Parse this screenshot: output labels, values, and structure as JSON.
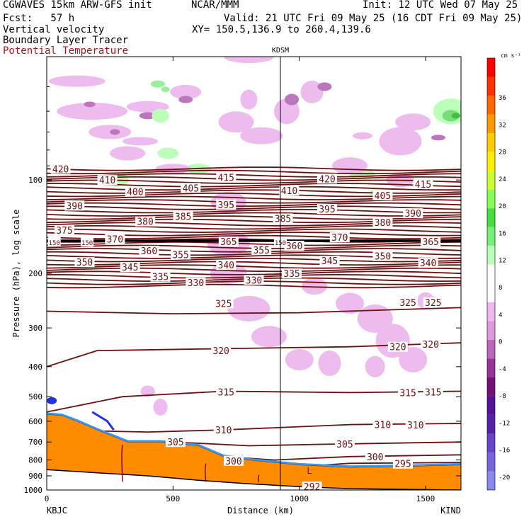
{
  "header": {
    "model": "CGWAVES 15km ARW-GFS init",
    "fcst": "Fcst:   57 h",
    "field1": "Vertical velocity",
    "field2": "Boundary Layer Tracer",
    "field3": "Potential Temperature",
    "org": "NCAR/MMM",
    "init": "Init: 12 UTC Wed 07 May 25",
    "valid": "Valid: 21 UTC Fri 09 May 25 (16 CDT Fri 09 May 25)",
    "xy": "XY= 150.5,136.9 to 260.4,139.6"
  },
  "colorbar": {
    "unit": "cm s⁻¹",
    "labels": [
      "36",
      "32",
      "28",
      "24",
      "20",
      "16",
      "12",
      "8",
      "4",
      "0",
      "-4",
      "-8",
      "-12",
      "-16",
      "-20"
    ],
    "colors": [
      "#ff0000",
      "#ff3300",
      "#ff6600",
      "#ff9900",
      "#ffcc00",
      "#ffee00",
      "#ccff33",
      "#88ff55",
      "#44dd44",
      "#77ee77",
      "#bbffbb",
      "#ffffff",
      "#ffffff",
      "#eeb8ee",
      "#dd99dd",
      "#bb66bb",
      "#993399",
      "#771177",
      "#551199",
      "#5522aa",
      "#6644cc",
      "#7766dd",
      "#8888ee"
    ]
  },
  "chart_data": {
    "type": "cross-section",
    "title": "KDSM",
    "xlabel": "Distance (km)",
    "ylabel": "Pressure (hPa), log scale",
    "x_ticks": [
      0,
      500,
      1000,
      1500
    ],
    "x_range": [
      0,
      1640
    ],
    "y_ticks": [
      100,
      200,
      300,
      400,
      500,
      600,
      700,
      800,
      900,
      1000
    ],
    "y_range": [
      1000,
      40
    ],
    "x_endpoints": {
      "left": "KBJC",
      "right": "KIND"
    },
    "station_marker": {
      "label": "KDSM",
      "distance_km": 925
    },
    "isentrope_labels": [
      {
        "text": "420",
        "x": 55,
        "p": 92
      },
      {
        "text": "410",
        "x": 240,
        "p": 100
      },
      {
        "text": "415",
        "x": 710,
        "p": 98
      },
      {
        "text": "420",
        "x": 1110,
        "p": 99
      },
      {
        "text": "415",
        "x": 1490,
        "p": 103
      },
      {
        "text": "410",
        "x": 960,
        "p": 108
      },
      {
        "text": "400",
        "x": 350,
        "p": 109
      },
      {
        "text": "405",
        "x": 570,
        "p": 106
      },
      {
        "text": "405",
        "x": 1330,
        "p": 112
      },
      {
        "text": "390",
        "x": 110,
        "p": 121
      },
      {
        "text": "395",
        "x": 710,
        "p": 120
      },
      {
        "text": "395",
        "x": 1110,
        "p": 124
      },
      {
        "text": "390",
        "x": 1450,
        "p": 128
      },
      {
        "text": "380",
        "x": 390,
        "p": 136
      },
      {
        "text": "385",
        "x": 540,
        "p": 131
      },
      {
        "text": "385",
        "x": 935,
        "p": 133
      },
      {
        "text": "380",
        "x": 1330,
        "p": 137
      },
      {
        "text": "375",
        "x": 70,
        "p": 145
      },
      {
        "text": "370",
        "x": 270,
        "p": 155
      },
      {
        "text": "370",
        "x": 1160,
        "p": 153
      },
      {
        "text": "365",
        "x": 720,
        "p": 158
      },
      {
        "text": "365",
        "x": 1520,
        "p": 158
      },
      {
        "text": "360",
        "x": 405,
        "p": 169
      },
      {
        "text": "360",
        "x": 980,
        "p": 163
      },
      {
        "text": "355",
        "x": 530,
        "p": 174
      },
      {
        "text": "355",
        "x": 850,
        "p": 168
      },
      {
        "text": "350",
        "x": 150,
        "p": 184
      },
      {
        "text": "345",
        "x": 330,
        "p": 191
      },
      {
        "text": "345",
        "x": 1120,
        "p": 182
      },
      {
        "text": "350",
        "x": 1330,
        "p": 176
      },
      {
        "text": "340",
        "x": 710,
        "p": 188
      },
      {
        "text": "340",
        "x": 1510,
        "p": 185
      },
      {
        "text": "335",
        "x": 450,
        "p": 205
      },
      {
        "text": "335",
        "x": 970,
        "p": 200
      },
      {
        "text": "330",
        "x": 590,
        "p": 214
      },
      {
        "text": "330",
        "x": 820,
        "p": 210
      },
      {
        "text": "325",
        "x": 700,
        "p": 250
      },
      {
        "text": "325",
        "x": 1430,
        "p": 248
      },
      {
        "text": "325",
        "x": 1530,
        "p": 248
      },
      {
        "text": "320",
        "x": 690,
        "p": 355
      },
      {
        "text": "320",
        "x": 1390,
        "p": 345
      },
      {
        "text": "320",
        "x": 1520,
        "p": 338
      },
      {
        "text": "315",
        "x": 710,
        "p": 483
      },
      {
        "text": "315",
        "x": 1430,
        "p": 485
      },
      {
        "text": "315",
        "x": 1530,
        "p": 483
      },
      {
        "text": "310",
        "x": 700,
        "p": 640
      },
      {
        "text": "310",
        "x": 1330,
        "p": 615
      },
      {
        "text": "310",
        "x": 1460,
        "p": 617
      },
      {
        "text": "305",
        "x": 510,
        "p": 700
      },
      {
        "text": "305",
        "x": 1180,
        "p": 710
      },
      {
        "text": "300",
        "x": 740,
        "p": 805
      },
      {
        "text": "300",
        "x": 1300,
        "p": 780
      },
      {
        "text": "295",
        "x": 1410,
        "p": 822
      },
      {
        "text": "292",
        "x": 1050,
        "p": 975
      },
      {
        "text": "150",
        "x": 30,
        "p": 158
      },
      {
        "text": "150",
        "x": 160,
        "p": 158
      },
      {
        "text": "150",
        "x": 925,
        "p": 158
      }
    ],
    "tropopause_marker": {
      "label": "L",
      "x": 1040,
      "p": 862
    }
  }
}
